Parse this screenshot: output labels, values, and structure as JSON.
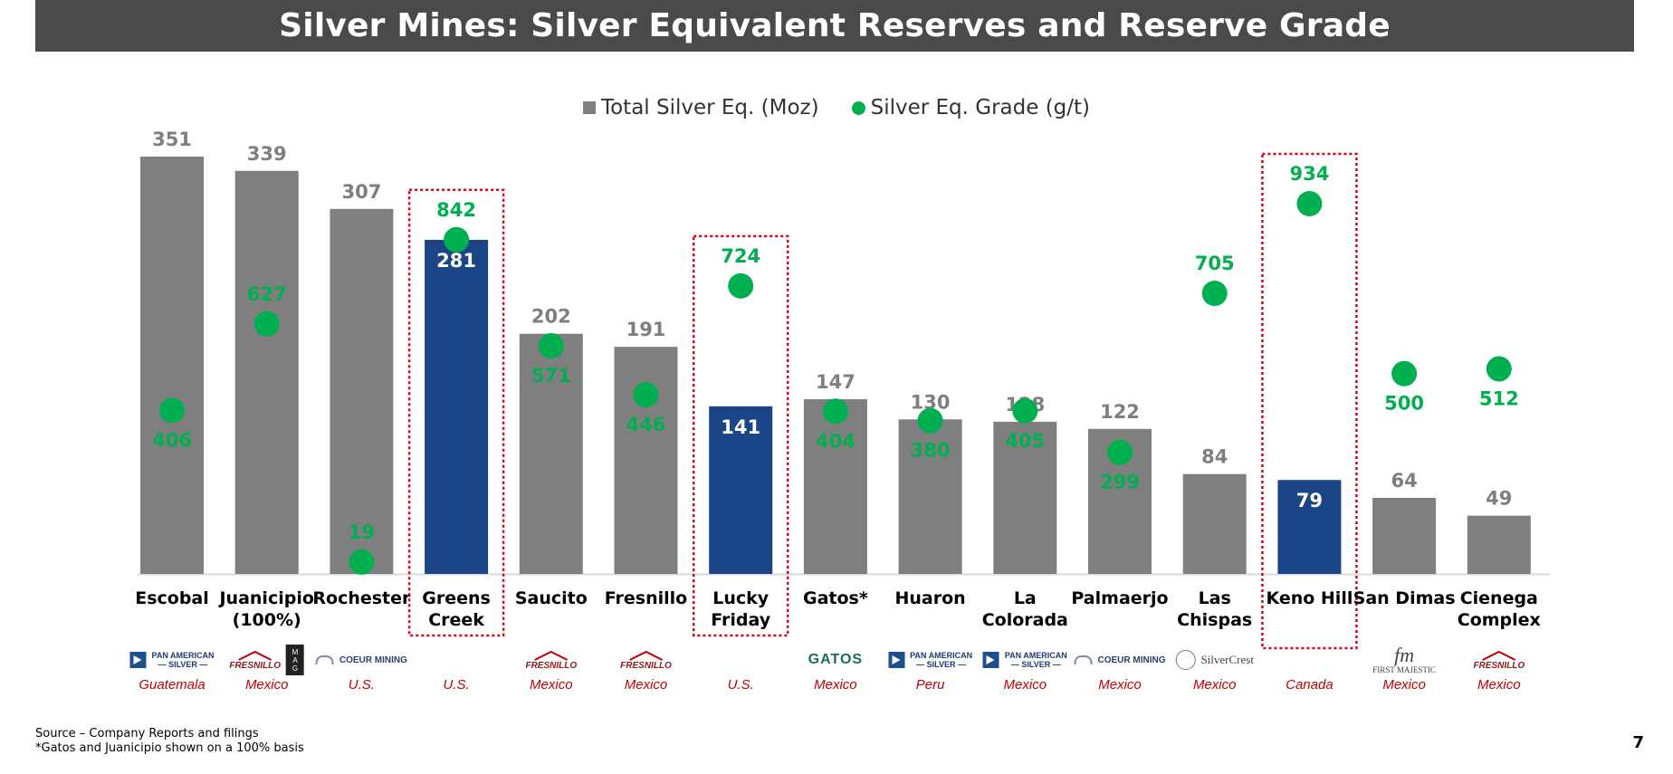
{
  "header": {
    "title": "Silver Mines: Silver Equivalent Reserves and Reserve Grade"
  },
  "legend": {
    "bar_label": "Total Silver Eq. (Moz)",
    "dot_label": "Silver Eq. Grade (g/t)"
  },
  "colors": {
    "gray_bar": "#7f7f7f",
    "highlight_bar": "#1b4587",
    "grade_dot": "#00b050",
    "box_border": "#e0001b",
    "country_text": "#c00000",
    "title_bg": "#4a4a4a"
  },
  "chart_data": {
    "type": "bar",
    "title": "Silver Mines: Silver Equivalent Reserves and Reserve Grade",
    "categories": [
      [
        "Escobal"
      ],
      [
        "Juanicipio",
        "(100%)"
      ],
      [
        "Rochester"
      ],
      [
        "Greens",
        "Creek"
      ],
      [
        "Saucito"
      ],
      [
        "Fresnillo"
      ],
      [
        "Lucky",
        "Friday"
      ],
      [
        "Gatos*"
      ],
      [
        "Huaron"
      ],
      [
        "La",
        "Colorada"
      ],
      [
        "Palmaerjo"
      ],
      [
        "Las",
        "Chispas"
      ],
      [
        "Keno Hill"
      ],
      [
        "San Dimas"
      ],
      [
        "Cienega",
        "Complex"
      ]
    ],
    "series": [
      {
        "name": "Total Silver Eq. (Moz)",
        "type": "bar",
        "values": [
          351,
          339,
          307,
          281,
          202,
          191,
          141,
          147,
          130,
          128,
          122,
          84,
          79,
          64,
          49
        ]
      },
      {
        "name": "Silver Eq. Grade (g/t)",
        "type": "scatter",
        "values": [
          406,
          627,
          19,
          842,
          571,
          446,
          724,
          404,
          380,
          405,
          299,
          705,
          934,
          500,
          512
        ]
      }
    ],
    "highlighted": [
      false,
      false,
      false,
      true,
      false,
      false,
      true,
      false,
      false,
      false,
      false,
      false,
      true,
      false,
      false
    ],
    "boxed": [
      false,
      false,
      false,
      true,
      false,
      false,
      true,
      false,
      false,
      false,
      false,
      false,
      true,
      false,
      false
    ],
    "countries": [
      "Guatemala",
      "Mexico",
      "U.S.",
      "U.S.",
      "Mexico",
      "Mexico",
      "U.S.",
      "Mexico",
      "Peru",
      "Mexico",
      "Mexico",
      "Mexico",
      "Canada",
      "Mexico",
      "Mexico"
    ],
    "bar_ylim": [
      0,
      351
    ],
    "grade_ylim": [
      0,
      934
    ],
    "grid": false,
    "legend_position": "top-center"
  },
  "logos": [
    {
      "kind": "paa",
      "text": [
        "PAN AMERICAN",
        "— SILVER —"
      ]
    },
    {
      "kind": "fres_mag",
      "text": [
        "FRESNILLO",
        "M",
        "A",
        "G"
      ]
    },
    {
      "kind": "coeur",
      "text": [
        "COEUR MINING"
      ]
    },
    null,
    {
      "kind": "fres",
      "text": [
        "FRESNILLO"
      ]
    },
    {
      "kind": "fres",
      "text": [
        "FRESNILLO"
      ]
    },
    null,
    {
      "kind": "gatos",
      "text": [
        "GATOS"
      ]
    },
    {
      "kind": "paa",
      "text": [
        "PAN AMERICAN",
        "— SILVER —"
      ]
    },
    {
      "kind": "paa",
      "text": [
        "PAN AMERICAN",
        "— SILVER —"
      ]
    },
    {
      "kind": "coeur",
      "text": [
        "COEUR MINING"
      ]
    },
    {
      "kind": "silvercrest",
      "text": [
        "SilverCrest"
      ]
    },
    null,
    {
      "kind": "fm",
      "text": [
        "fm",
        "FIRST MAJESTIC"
      ]
    },
    {
      "kind": "fres",
      "text": [
        "FRESNILLO"
      ]
    }
  ],
  "footnotes": [
    "Source – Company Reports and filings",
    "*Gatos and Juanicipio shown on a 100% basis"
  ],
  "page_number": "7"
}
